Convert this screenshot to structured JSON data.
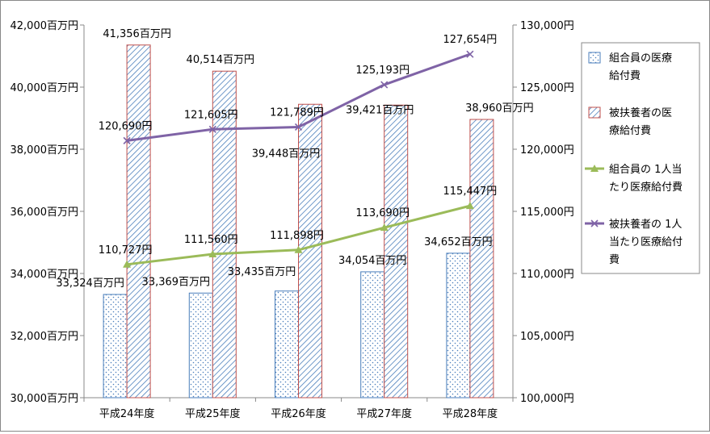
{
  "chart_data": {
    "type": "bar+line",
    "categories": [
      "平成24年度",
      "平成25年度",
      "平成26年度",
      "平成27年度",
      "平成28年度"
    ],
    "left_axis": {
      "ylim": [
        30000,
        42000
      ],
      "ticks": [
        30000,
        32000,
        34000,
        36000,
        38000,
        40000,
        42000
      ],
      "tick_labels": [
        "30,000百万円",
        "32,000百万円",
        "34,000百万円",
        "36,000百万円",
        "38,000百万円",
        "40,000百万円",
        "42,000百万円"
      ]
    },
    "right_axis": {
      "ylim": [
        100000,
        130000
      ],
      "ticks": [
        100000,
        105000,
        110000,
        115000,
        120000,
        125000,
        130000
      ],
      "tick_labels": [
        "100,000円",
        "105,000円",
        "110,000円",
        "115,000円",
        "120,000円",
        "125,000円",
        "130,000円"
      ]
    },
    "bar_series": [
      {
        "name": "組合員の医療給付費",
        "axis": "left",
        "values": [
          33324,
          33369,
          33435,
          34054,
          34652
        ],
        "labels": [
          "33,324百万円",
          "33,369百万円",
          "33,435百万円",
          "34,054百万円",
          "34,652百万円"
        ],
        "color": "#4a7ebb"
      },
      {
        "name": "被扶養者の医療給付費",
        "axis": "left",
        "values": [
          41356,
          40514,
          39448,
          39421,
          38960
        ],
        "labels": [
          "41,356百万円",
          "40,514百万円",
          "39,448百万円",
          "39,421百万円",
          "38,960百万円"
        ],
        "color": "#c0504d",
        "hatch_color": "#4a7ebb"
      }
    ],
    "line_series": [
      {
        "name": "組合員の 1人当たり医療給付費",
        "axis": "right",
        "values": [
          110727,
          111560,
          111898,
          113690,
          115447
        ],
        "labels": [
          "110,727円",
          "111,560円",
          "111,898円",
          "113,690円",
          "115,447円"
        ],
        "color": "#9bbb59",
        "marker": "triangle"
      },
      {
        "name": "被扶養者の 1人当たり医療給付費",
        "axis": "right",
        "values": [
          120690,
          121605,
          121789,
          125193,
          127654
        ],
        "labels": [
          "120,690円",
          "121,605円",
          "121,789円",
          "125,193円",
          "127,654円"
        ],
        "color": "#7f63a6",
        "marker": "x"
      }
    ],
    "legend": {
      "position": "right",
      "entries": [
        [
          "組合員の医療",
          "給付費"
        ],
        [
          "被扶養者の医",
          "療給付費"
        ],
        [
          "組合員の 1人当",
          "たり医療給付費"
        ],
        [
          "被扶養者の 1人",
          "当たり医療給付",
          "費"
        ]
      ]
    },
    "grid": false
  }
}
